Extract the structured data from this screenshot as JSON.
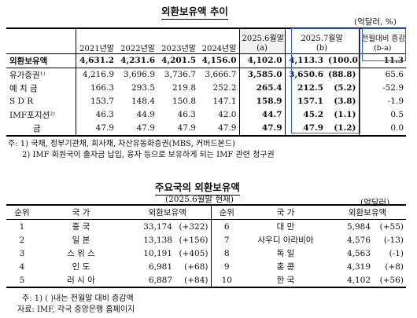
{
  "reserves": {
    "title": "외환보유액 추이",
    "unit": "(억달러, %)",
    "headers": {
      "col2021": "2021년말",
      "col2022": "2022년말",
      "col2023": "2023년말",
      "col2024": "2024년말",
      "jun_line1": "2025.6월말",
      "jun_line2": "(a)",
      "jul_line1": "2025.7월말",
      "jul_line2": "(b)",
      "chg_line1": "전월대비 증감",
      "chg_line2": "(b-a)"
    },
    "rows": [
      {
        "label": "외환보유액",
        "y2021": "4,631.2",
        "y2022": "4,231.6",
        "y2023": "4,201.5",
        "y2024": "4,156.0",
        "jun": "4,102.0",
        "jul": "4,113.3",
        "share": "(100.0)",
        "chg": "11.3"
      },
      {
        "label": "유가증권¹⁾",
        "y2021": "4,216.9",
        "y2022": "3,696.9",
        "y2023": "3,736.7",
        "y2024": "3,666.7",
        "jun": "3,585.0",
        "jul": "3,650.6",
        "share": "(88.8)",
        "chg": "65.6"
      },
      {
        "label": "예 치 금",
        "y2021": "166.3",
        "y2022": "293.5",
        "y2023": "219.8",
        "y2024": "252.2",
        "jun": "265.4",
        "jul": "212.5",
        "share": "(5.2)",
        "chg": "-52.9"
      },
      {
        "label": "S D R",
        "y2021": "153.7",
        "y2022": "148.4",
        "y2023": "150.8",
        "y2024": "147.1",
        "jun": "158.9",
        "jul": "157.1",
        "share": "(3.8)",
        "chg": "-1.9"
      },
      {
        "label": "IMF포지션²⁾",
        "y2021": "46.3",
        "y2022": "44.9",
        "y2023": "46.3",
        "y2024": "42.0",
        "jun": "44.7",
        "jul": "45.2",
        "share": "(1.1)",
        "chg": "0.5"
      },
      {
        "label": "금",
        "y2021": "47.9",
        "y2022": "47.9",
        "y2023": "47.9",
        "y2024": "47.9",
        "jun": "47.9",
        "jul": "47.9",
        "share": "(1.2)",
        "chg": "0.0"
      }
    ],
    "notes": [
      "주: 1) 국채, 정부기관채, 회사채, 자산유동화증권(MBS, 커버드본드)",
      "2) IMF 회원국이 출자금 납입, 융자 등으로 보유하게 되는 IMF 관련 청구권"
    ]
  },
  "countries": {
    "title": "주요국의 외환보유액",
    "subtitle": "(2025.6월말 현재)",
    "unit": "(억달러)",
    "headers": {
      "rank": "순위",
      "country": "국 가",
      "reserve": "외환보유액"
    },
    "left": [
      {
        "rank": "1",
        "country": "중   국",
        "value": "33,174",
        "chg": "(+322)"
      },
      {
        "rank": "2",
        "country": "일   본",
        "value": "13,138",
        "chg": "(+156)"
      },
      {
        "rank": "3",
        "country": "스 위 스",
        "value": "10,191",
        "chg": "(+405)"
      },
      {
        "rank": "4",
        "country": "인   도",
        "value": "6,981",
        "chg": "(+68)"
      },
      {
        "rank": "5",
        "country": "러 시 아",
        "value": "6,887",
        "chg": "(+84)"
      }
    ],
    "right": [
      {
        "rank": "6",
        "country": "대   만",
        "value": "5,984",
        "chg": "(+55)"
      },
      {
        "rank": "7",
        "country": "사우디 아라비아",
        "value": "4,576",
        "chg": "(-13)"
      },
      {
        "rank": "8",
        "country": "독   일",
        "value": "4,563",
        "chg": "(-1)"
      },
      {
        "rank": "9",
        "country": "홍   콩",
        "value": "4,319",
        "chg": "(+8)"
      },
      {
        "rank": "10",
        "country": "한   국",
        "value": "4,102",
        "chg": "(+56)"
      }
    ],
    "notes": [
      "주: 1) ( )내는 전월말 대비 증감액",
      "자료: IMF, 각국 중앙은행 홈페이지"
    ]
  }
}
